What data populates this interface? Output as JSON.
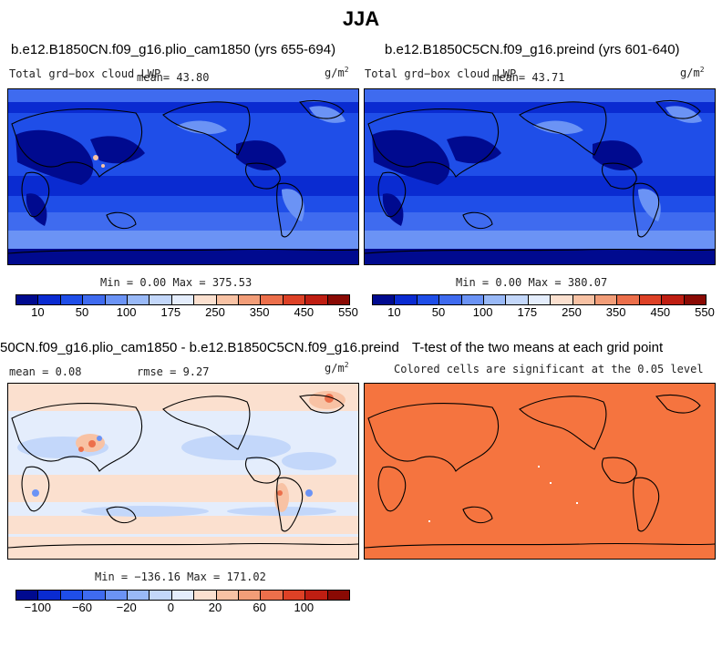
{
  "figure": {
    "title": "JJA"
  },
  "panels": [
    {
      "title": "b.e12.B1850CN.f09_g16.plio_cam1850 (yrs 655-694)",
      "variable": "Total grd−box cloud LWP",
      "mean_text": "mean=  43.80",
      "units": "g/m",
      "units_exp": "2",
      "minmax": "Min =   0.00 Max = 375.53",
      "colorbar": [
        "10",
        "50",
        "100",
        "175",
        "250",
        "350",
        "450",
        "550"
      ]
    },
    {
      "title": "b.e12.B1850C5CN.f09_g16.preind (yrs 601-640)",
      "variable": "Total grd−box cloud LWP",
      "mean_text": "mean=  43.71",
      "units": "g/m",
      "units_exp": "2",
      "minmax": "Min =   0.00 Max = 380.07",
      "colorbar": [
        "10",
        "50",
        "100",
        "175",
        "250",
        "350",
        "450",
        "550"
      ]
    },
    {
      "title": "50CN.f09_g16.plio_cam1850 - b.e12.B1850C5CN.f09_g16.preind",
      "mean_text": "mean =   0.08",
      "rmse_text": "rmse =   9.27",
      "units": "g/m",
      "units_exp": "2",
      "minmax": "Min = −136.16 Max = 171.02",
      "colorbar": [
        "−100",
        "−60",
        "−20",
        "0",
        "20",
        "60",
        "100"
      ]
    },
    {
      "title": "T-test of the two means at each grid point",
      "subtitle": "Colored cells are significant at the 0.05 level"
    }
  ],
  "colors": {
    "scale": [
      "#000a8f",
      "#0a2bd1",
      "#1f4ee8",
      "#3f6bef",
      "#6b93f5",
      "#99b9f7",
      "#c3d7fa",
      "#e4edfc",
      "#fbe0cf",
      "#f8c2a4",
      "#f29d78",
      "#ec6f4b",
      "#dd4126",
      "#bf1e12",
      "#8a0a04"
    ],
    "ttest": "#f5743f",
    "land": "#000000"
  }
}
